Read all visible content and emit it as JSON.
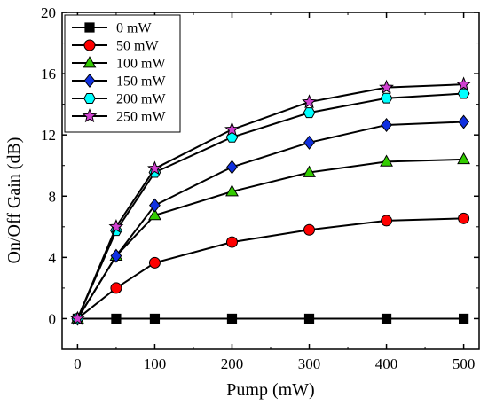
{
  "chart_data": {
    "type": "line",
    "title": "",
    "xlabel": "Pump (mW)",
    "ylabel": "On/Off Gain (dB)",
    "x": [
      0,
      50,
      100,
      200,
      300,
      400,
      500
    ],
    "xlim": [
      -20,
      520
    ],
    "ylim": [
      -2,
      20
    ],
    "xticks": [
      0,
      100,
      200,
      300,
      400,
      500
    ],
    "yticks": [
      0,
      4,
      8,
      12,
      16,
      20
    ],
    "grid": false,
    "legend_position": "top-left",
    "series": [
      {
        "name": "0 mW",
        "marker": "square",
        "color": "#000000",
        "values": [
          0,
          0,
          0,
          0,
          0,
          0,
          0
        ]
      },
      {
        "name": "50 mW",
        "marker": "circle",
        "color": "#ff0000",
        "values": [
          0,
          2.0,
          3.65,
          5.0,
          5.8,
          6.4,
          6.55
        ]
      },
      {
        "name": "100 mW",
        "marker": "triangle",
        "color": "#33cc00",
        "values": [
          0,
          4.1,
          6.75,
          8.3,
          9.55,
          10.25,
          10.4
        ]
      },
      {
        "name": "150 mW",
        "marker": "diamond",
        "color": "#1030e0",
        "values": [
          0,
          4.1,
          7.4,
          9.9,
          11.5,
          12.65,
          12.85
        ]
      },
      {
        "name": "200 mW",
        "marker": "hexagon",
        "color": "#00ffff",
        "values": [
          0,
          5.75,
          9.55,
          11.85,
          13.45,
          14.4,
          14.7
        ]
      },
      {
        "name": "250 mW",
        "marker": "star",
        "color": "#d040d0",
        "values": [
          0,
          6.0,
          9.8,
          12.35,
          14.15,
          15.1,
          15.3
        ]
      }
    ]
  }
}
